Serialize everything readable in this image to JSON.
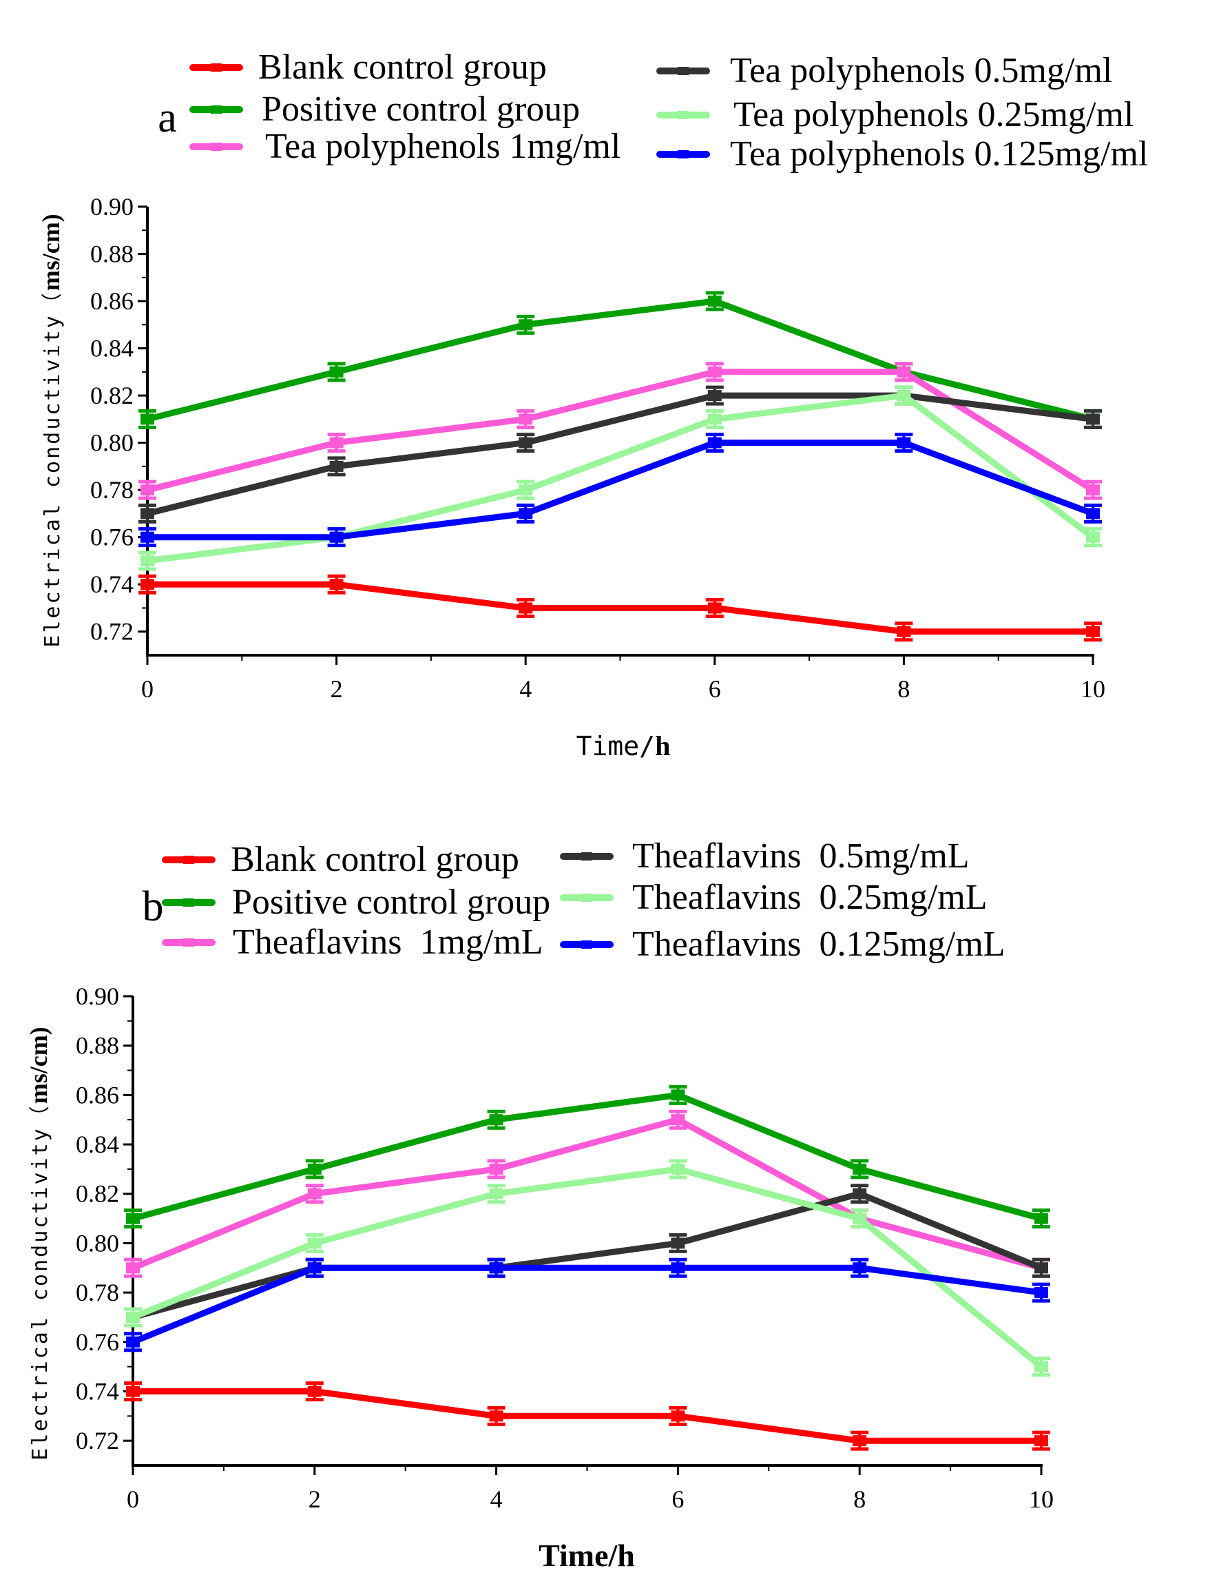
{
  "figure": {
    "panels": [
      {
        "panel_label": "a",
        "x_label_plain": "Time/",
        "x_label_bold": "h",
        "y_label_plain": "Electrical conductivity（",
        "y_label_bold": "ms/cm)"
      },
      {
        "panel_label": "b",
        "x_label_plain": "",
        "x_label_bold": "Time/h",
        "y_label_plain": "Electrical conductivity（",
        "y_label_bold": "ms/cm)"
      }
    ]
  },
  "chart_data": [
    {
      "type": "line",
      "title": "a",
      "xlabel": "Time/h",
      "ylabel": "Electrical conductivity（ms/cm)",
      "xlim": [
        0,
        10
      ],
      "ylim": [
        0.71,
        0.9
      ],
      "xticks": [
        0,
        2,
        4,
        6,
        8,
        10
      ],
      "yticks": [
        0.72,
        0.74,
        0.76,
        0.78,
        0.8,
        0.82,
        0.84,
        0.86,
        0.88,
        0.9
      ],
      "x": [
        0,
        2,
        4,
        6,
        8,
        10
      ],
      "series": [
        {
          "name": "Blank control group",
          "color": "#ff0000",
          "values": [
            0.74,
            0.74,
            0.73,
            0.73,
            0.72,
            0.72
          ]
        },
        {
          "name": "Positive control group",
          "color": "#00a000",
          "values": [
            0.81,
            0.83,
            0.85,
            0.86,
            0.83,
            0.81
          ]
        },
        {
          "name": "Tea polyphenols 1mg/ml",
          "color": "#ff5ad8",
          "values": [
            0.78,
            0.8,
            0.81,
            0.83,
            0.83,
            0.78
          ]
        },
        {
          "name": "Tea polyphenols 0.5mg/ml",
          "color": "#333333",
          "values": [
            0.77,
            0.79,
            0.8,
            0.82,
            0.82,
            0.81
          ]
        },
        {
          "name": "Tea polyphenols 0.25mg/ml",
          "color": "#98f598",
          "values": [
            0.75,
            0.76,
            0.78,
            0.81,
            0.82,
            0.76
          ]
        },
        {
          "name": "Tea polyphenols 0.125mg/ml",
          "color": "#0000ff",
          "values": [
            0.76,
            0.76,
            0.77,
            0.8,
            0.8,
            0.77
          ]
        }
      ]
    },
    {
      "type": "line",
      "title": "b",
      "xlabel": "Time/h",
      "ylabel": "Electrical conductivity（ms/cm)",
      "xlim": [
        0,
        10
      ],
      "ylim": [
        0.71,
        0.9
      ],
      "xticks": [
        0,
        2,
        4,
        6,
        8,
        10
      ],
      "yticks": [
        0.72,
        0.74,
        0.76,
        0.78,
        0.8,
        0.82,
        0.84,
        0.86,
        0.88,
        0.9
      ],
      "x": [
        0,
        2,
        4,
        6,
        8,
        10
      ],
      "series": [
        {
          "name": "Blank control group",
          "color": "#ff0000",
          "values": [
            0.74,
            0.74,
            0.73,
            0.73,
            0.72,
            0.72
          ]
        },
        {
          "name": "Positive control group",
          "color": "#00a000",
          "values": [
            0.81,
            0.83,
            0.85,
            0.86,
            0.83,
            0.81
          ]
        },
        {
          "name": "Theaflavins  1mg/mL",
          "color": "#ff5ad8",
          "values": [
            0.79,
            0.82,
            0.83,
            0.85,
            0.81,
            0.79
          ]
        },
        {
          "name": "Theaflavins  0.5mg/mL",
          "color": "#333333",
          "values": [
            0.77,
            0.79,
            0.79,
            0.8,
            0.82,
            0.79
          ]
        },
        {
          "name": "Theaflavins  0.25mg/mL",
          "color": "#98f598",
          "values": [
            0.77,
            0.8,
            0.82,
            0.83,
            0.81,
            0.75
          ]
        },
        {
          "name": "Theaflavins  0.125mg/mL",
          "color": "#0000ff",
          "values": [
            0.76,
            0.79,
            0.79,
            0.79,
            0.79,
            0.78
          ]
        }
      ]
    }
  ]
}
